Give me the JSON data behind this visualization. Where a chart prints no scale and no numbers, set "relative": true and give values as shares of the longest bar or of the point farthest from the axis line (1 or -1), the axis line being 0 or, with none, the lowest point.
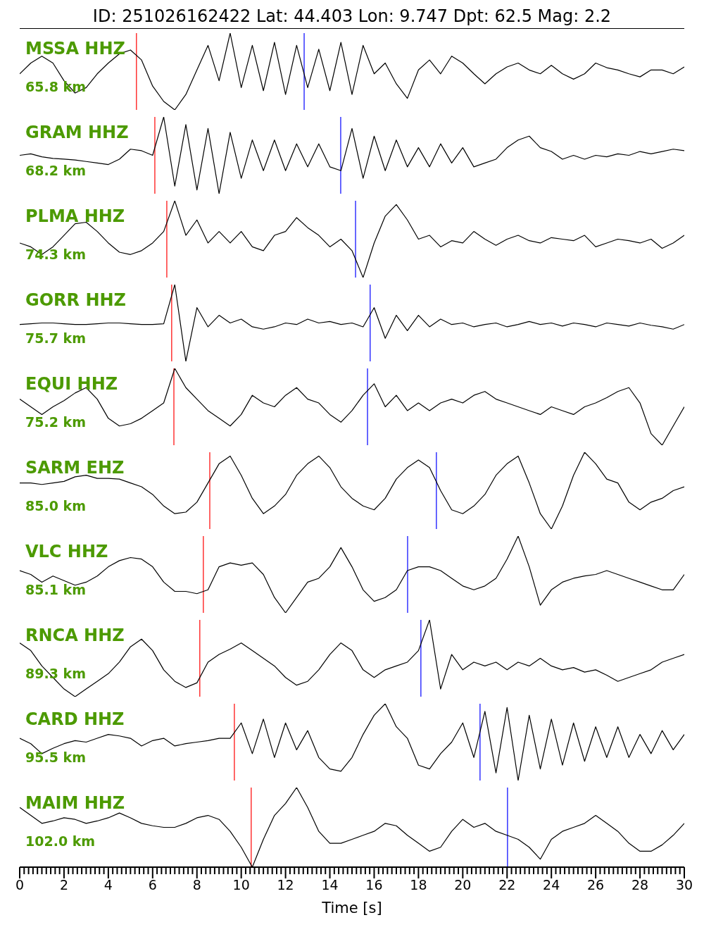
{
  "chart_data": [
    {
      "type": "line",
      "title": "ID: 251026162422 Lat:  44.403 Lon:   9.747 Dpt:    62.5 Mag:   2.2",
      "annotations": [
        "MSSA HHZ",
        "65.8 km"
      ],
      "relative": true,
      "xlim": [
        0,
        30
      ],
      "tick_labels": false,
      "color": "#000000",
      "x": [
        0,
        0.5,
        1,
        1.5,
        2,
        2.5,
        3,
        3.5,
        4,
        4.5,
        5,
        5.5,
        6,
        6.5,
        7,
        7.5,
        8,
        8.5,
        9,
        9.5,
        10,
        10.5,
        11,
        11.5,
        12,
        12.5,
        13,
        13.5,
        14,
        14.5,
        15,
        15.5,
        16,
        16.5,
        17,
        17.5,
        18,
        18.5,
        19,
        19.5,
        20,
        20.5,
        21,
        21.5,
        22,
        22.5,
        23,
        23.5,
        24,
        24.5,
        25,
        25.5,
        26,
        26.5,
        27,
        27.5,
        28,
        28.5,
        29,
        29.5,
        30
      ],
      "values": [
        0.47,
        0.61,
        0.7,
        0.61,
        0.38,
        0.22,
        0.29,
        0.47,
        0.61,
        0.73,
        0.78,
        0.65,
        0.31,
        0.11,
        0,
        0.2,
        0.52,
        0.84,
        0.38,
        1,
        0.29,
        0.84,
        0.25,
        0.88,
        0.2,
        0.84,
        0.29,
        0.79,
        0.25,
        0.88,
        0.2,
        0.84,
        0.47,
        0.61,
        0.34,
        0.15,
        0.52,
        0.65,
        0.47,
        0.7,
        0.61,
        0.47,
        0.34,
        0.47,
        0.56,
        0.61,
        0.52,
        0.47,
        0.58,
        0.47,
        0.4,
        0.47,
        0.61,
        0.55,
        0.52,
        0.47,
        0.43,
        0.52,
        0.52,
        0.47,
        0.56
      ],
      "ref_lines": [
        {
          "axis": "x",
          "value": 5.27,
          "color": "#ff0000"
        },
        {
          "axis": "x",
          "value": 12.84,
          "color": "#0000ff"
        }
      ]
    },
    {
      "type": "line",
      "annotations": [
        "GRAM HHZ",
        "68.2 km"
      ],
      "relative": true,
      "xlim": [
        0,
        30
      ],
      "tick_labels": false,
      "color": "#000000",
      "x": [
        0,
        0.5,
        1,
        1.5,
        2,
        2.5,
        3,
        3.5,
        4,
        4.5,
        5,
        5.5,
        6,
        6.5,
        7,
        7.5,
        8,
        8.5,
        9,
        9.5,
        10,
        10.5,
        11,
        11.5,
        12,
        12.5,
        13,
        13.5,
        14,
        14.5,
        15,
        15.5,
        16,
        16.5,
        17,
        17.5,
        18,
        18.5,
        19,
        19.5,
        20,
        20.5,
        21,
        21.5,
        22,
        22.5,
        23,
        23.5,
        24,
        24.5,
        25,
        25.5,
        26,
        26.5,
        27,
        27.5,
        28,
        28.5,
        29,
        29.5,
        30
      ],
      "values": [
        0.5,
        0.52,
        0.48,
        0.46,
        0.45,
        0.44,
        0.42,
        0.4,
        0.38,
        0.45,
        0.58,
        0.56,
        0.5,
        1,
        0.1,
        0.9,
        0.05,
        0.85,
        0,
        0.8,
        0.2,
        0.7,
        0.3,
        0.7,
        0.3,
        0.65,
        0.35,
        0.65,
        0.35,
        0.3,
        0.85,
        0.2,
        0.75,
        0.3,
        0.7,
        0.35,
        0.6,
        0.35,
        0.65,
        0.4,
        0.6,
        0.35,
        0.4,
        0.45,
        0.6,
        0.7,
        0.75,
        0.6,
        0.55,
        0.45,
        0.5,
        0.45,
        0.5,
        0.48,
        0.52,
        0.5,
        0.55,
        0.52,
        0.55,
        0.58,
        0.56
      ],
      "ref_lines": [
        {
          "axis": "x",
          "value": 6.1,
          "color": "#ff0000"
        },
        {
          "axis": "x",
          "value": 14.49,
          "color": "#0000ff"
        }
      ]
    },
    {
      "type": "line",
      "annotations": [
        "PLMA HHZ",
        "74.3 km"
      ],
      "relative": true,
      "xlim": [
        0,
        30
      ],
      "tick_labels": false,
      "color": "#000000",
      "x": [
        0,
        0.5,
        1,
        1.5,
        2,
        2.5,
        3,
        3.5,
        4,
        4.5,
        5,
        5.5,
        6,
        6.5,
        7,
        7.5,
        8,
        8.5,
        9,
        9.5,
        10,
        10.5,
        11,
        11.5,
        12,
        12.5,
        13,
        13.5,
        14,
        14.5,
        15,
        15.5,
        16,
        16.5,
        17,
        17.5,
        18,
        18.5,
        19,
        19.5,
        20,
        20.5,
        21,
        21.5,
        22,
        22.5,
        23,
        23.5,
        24,
        24.5,
        25,
        25.5,
        26,
        26.5,
        27,
        27.5,
        28,
        28.5,
        29,
        29.5,
        30
      ],
      "values": [
        0.45,
        0.4,
        0.3,
        0.4,
        0.55,
        0.7,
        0.72,
        0.6,
        0.45,
        0.33,
        0.3,
        0.35,
        0.45,
        0.6,
        1,
        0.55,
        0.75,
        0.45,
        0.6,
        0.45,
        0.6,
        0.4,
        0.35,
        0.55,
        0.6,
        0.78,
        0.65,
        0.55,
        0.4,
        0.5,
        0.35,
        0,
        0.45,
        0.8,
        0.95,
        0.75,
        0.5,
        0.55,
        0.4,
        0.48,
        0.45,
        0.6,
        0.5,
        0.42,
        0.5,
        0.55,
        0.48,
        0.45,
        0.52,
        0.5,
        0.48,
        0.55,
        0.4,
        0.45,
        0.5,
        0.48,
        0.45,
        0.5,
        0.38,
        0.45,
        0.55
      ],
      "ref_lines": [
        {
          "axis": "x",
          "value": 6.64,
          "color": "#ff0000"
        },
        {
          "axis": "x",
          "value": 15.16,
          "color": "#0000ff"
        }
      ]
    },
    {
      "type": "line",
      "annotations": [
        "GORR HHZ",
        "75.7 km"
      ],
      "relative": true,
      "xlim": [
        0,
        30
      ],
      "tick_labels": false,
      "color": "#000000",
      "x": [
        0,
        0.5,
        1,
        1.5,
        2,
        2.5,
        3,
        3.5,
        4,
        4.5,
        5,
        5.5,
        6,
        6.5,
        7,
        7.5,
        8,
        8.5,
        9,
        9.5,
        10,
        10.5,
        11,
        11.5,
        12,
        12.5,
        13,
        13.5,
        14,
        14.5,
        15,
        15.5,
        16,
        16.5,
        17,
        17.5,
        18,
        18.5,
        19,
        19.5,
        20,
        20.5,
        21,
        21.5,
        22,
        22.5,
        23,
        23.5,
        24,
        24.5,
        25,
        25.5,
        26,
        26.5,
        27,
        27.5,
        28,
        28.5,
        29,
        29.5,
        30
      ],
      "values": [
        0.48,
        0.49,
        0.5,
        0.5,
        0.49,
        0.48,
        0.48,
        0.49,
        0.5,
        0.5,
        0.49,
        0.48,
        0.48,
        0.49,
        1,
        0,
        0.7,
        0.45,
        0.6,
        0.5,
        0.55,
        0.45,
        0.42,
        0.45,
        0.5,
        0.48,
        0.55,
        0.5,
        0.52,
        0.48,
        0.5,
        0.45,
        0.7,
        0.3,
        0.6,
        0.4,
        0.6,
        0.45,
        0.55,
        0.48,
        0.5,
        0.45,
        0.48,
        0.5,
        0.45,
        0.48,
        0.52,
        0.48,
        0.5,
        0.46,
        0.5,
        0.48,
        0.45,
        0.5,
        0.48,
        0.46,
        0.5,
        0.47,
        0.45,
        0.42,
        0.48
      ],
      "ref_lines": [
        {
          "axis": "x",
          "value": 6.86,
          "color": "#ff0000"
        },
        {
          "axis": "x",
          "value": 15.82,
          "color": "#0000ff"
        }
      ]
    },
    {
      "type": "line",
      "annotations": [
        "EQUI HHZ",
        "75.2 km"
      ],
      "relative": true,
      "xlim": [
        0,
        30
      ],
      "tick_labels": false,
      "color": "#000000",
      "x": [
        0,
        0.5,
        1,
        1.5,
        2,
        2.5,
        3,
        3.5,
        4,
        4.5,
        5,
        5.5,
        6,
        6.5,
        7,
        7.5,
        8,
        8.5,
        9,
        9.5,
        10,
        10.5,
        11,
        11.5,
        12,
        12.5,
        13,
        13.5,
        14,
        14.5,
        15,
        15.5,
        16,
        16.5,
        17,
        17.5,
        18,
        18.5,
        19,
        19.5,
        20,
        20.5,
        21,
        21.5,
        22,
        22.5,
        23,
        23.5,
        24,
        24.5,
        25,
        25.5,
        26,
        26.5,
        27,
        27.5,
        28,
        28.5,
        29,
        29.5,
        30
      ],
      "values": [
        0.6,
        0.5,
        0.4,
        0.5,
        0.58,
        0.68,
        0.75,
        0.6,
        0.35,
        0.25,
        0.28,
        0.35,
        0.45,
        0.55,
        1,
        0.75,
        0.6,
        0.45,
        0.35,
        0.25,
        0.4,
        0.65,
        0.55,
        0.5,
        0.65,
        0.75,
        0.6,
        0.55,
        0.4,
        0.3,
        0.45,
        0.65,
        0.8,
        0.5,
        0.65,
        0.45,
        0.55,
        0.45,
        0.55,
        0.6,
        0.55,
        0.65,
        0.7,
        0.6,
        0.55,
        0.5,
        0.45,
        0.4,
        0.5,
        0.45,
        0.4,
        0.5,
        0.55,
        0.62,
        0.7,
        0.75,
        0.55,
        0.15,
        0,
        0.25,
        0.5
      ],
      "ref_lines": [
        {
          "axis": "x",
          "value": 6.96,
          "color": "#ff0000"
        },
        {
          "axis": "x",
          "value": 15.7,
          "color": "#0000ff"
        }
      ]
    },
    {
      "type": "line",
      "annotations": [
        "SARM EHZ",
        "85.0 km"
      ],
      "relative": true,
      "xlim": [
        0,
        30
      ],
      "tick_labels": false,
      "color": "#000000",
      "x": [
        0,
        0.5,
        1,
        1.5,
        2,
        2.5,
        3,
        3.5,
        4,
        4.5,
        5,
        5.5,
        6,
        6.5,
        7,
        7.5,
        8,
        8.5,
        9,
        9.5,
        10,
        10.5,
        11,
        11.5,
        12,
        12.5,
        13,
        13.5,
        14,
        14.5,
        15,
        15.5,
        16,
        16.5,
        17,
        17.5,
        18,
        18.5,
        19,
        19.5,
        20,
        20.5,
        21,
        21.5,
        22,
        22.5,
        23,
        23.5,
        24,
        24.5,
        25,
        25.5,
        26,
        26.5,
        27,
        27.5,
        28,
        28.5,
        29,
        29.5,
        30
      ],
      "values": [
        0.6,
        0.6,
        0.58,
        0.6,
        0.62,
        0.68,
        0.7,
        0.66,
        0.66,
        0.65,
        0.6,
        0.55,
        0.45,
        0.3,
        0.2,
        0.22,
        0.35,
        0.6,
        0.85,
        0.95,
        0.7,
        0.4,
        0.2,
        0.3,
        0.45,
        0.7,
        0.85,
        0.95,
        0.8,
        0.55,
        0.4,
        0.3,
        0.25,
        0.4,
        0.65,
        0.8,
        0.9,
        0.8,
        0.5,
        0.25,
        0.2,
        0.3,
        0.45,
        0.7,
        0.85,
        0.95,
        0.6,
        0.2,
        0,
        0.3,
        0.7,
        1,
        0.85,
        0.65,
        0.6,
        0.35,
        0.25,
        0.35,
        0.4,
        0.5,
        0.55
      ],
      "ref_lines": [
        {
          "axis": "x",
          "value": 8.58,
          "color": "#ff0000"
        },
        {
          "axis": "x",
          "value": 18.81,
          "color": "#0000ff"
        }
      ]
    },
    {
      "type": "line",
      "annotations": [
        "VLC HHZ",
        "85.1 km"
      ],
      "relative": true,
      "xlim": [
        0,
        30
      ],
      "tick_labels": false,
      "color": "#000000",
      "x": [
        0,
        0.5,
        1,
        1.5,
        2,
        2.5,
        3,
        3.5,
        4,
        4.5,
        5,
        5.5,
        6,
        6.5,
        7,
        7.5,
        8,
        8.5,
        9,
        9.5,
        10,
        10.5,
        11,
        11.5,
        12,
        12.5,
        13,
        13.5,
        14,
        14.5,
        15,
        15.5,
        16,
        16.5,
        17,
        17.5,
        18,
        18.5,
        19,
        19.5,
        20,
        20.5,
        21,
        21.5,
        22,
        22.5,
        23,
        23.5,
        24,
        24.5,
        25,
        25.5,
        26,
        26.5,
        27,
        27.5,
        28,
        28.5,
        29,
        29.5,
        30
      ],
      "values": [
        0.55,
        0.5,
        0.4,
        0.48,
        0.42,
        0.36,
        0.4,
        0.48,
        0.6,
        0.68,
        0.72,
        0.7,
        0.6,
        0.4,
        0.28,
        0.28,
        0.25,
        0.3,
        0.6,
        0.65,
        0.62,
        0.65,
        0.5,
        0.2,
        0,
        0.2,
        0.4,
        0.45,
        0.6,
        0.85,
        0.6,
        0.3,
        0.15,
        0.2,
        0.3,
        0.55,
        0.6,
        0.6,
        0.55,
        0.45,
        0.35,
        0.3,
        0.35,
        0.45,
        0.7,
        1,
        0.6,
        0.1,
        0.3,
        0.4,
        0.45,
        0.48,
        0.5,
        0.55,
        0.5,
        0.45,
        0.4,
        0.35,
        0.3,
        0.3,
        0.5
      ],
      "ref_lines": [
        {
          "axis": "x",
          "value": 8.29,
          "color": "#ff0000"
        },
        {
          "axis": "x",
          "value": 17.51,
          "color": "#0000ff"
        }
      ]
    },
    {
      "type": "line",
      "annotations": [
        "RNCA HHZ",
        "89.3 km"
      ],
      "relative": true,
      "xlim": [
        0,
        30
      ],
      "tick_labels": false,
      "color": "#000000",
      "x": [
        0,
        0.5,
        1,
        1.5,
        2,
        2.5,
        3,
        3.5,
        4,
        4.5,
        5,
        5.5,
        6,
        6.5,
        7,
        7.5,
        8,
        8.5,
        9,
        9.5,
        10,
        10.5,
        11,
        11.5,
        12,
        12.5,
        13,
        13.5,
        14,
        14.5,
        15,
        15.5,
        16,
        16.5,
        17,
        17.5,
        18,
        18.5,
        19,
        19.5,
        20,
        20.5,
        21,
        21.5,
        22,
        22.5,
        23,
        23.5,
        24,
        24.5,
        25,
        25.5,
        26,
        26.5,
        27,
        27.5,
        28,
        28.5,
        29,
        29.5,
        30
      ],
      "values": [
        0.7,
        0.6,
        0.4,
        0.25,
        0.1,
        0,
        0.1,
        0.2,
        0.3,
        0.45,
        0.65,
        0.75,
        0.6,
        0.35,
        0.2,
        0.12,
        0.18,
        0.45,
        0.55,
        0.62,
        0.7,
        0.6,
        0.5,
        0.4,
        0.25,
        0.15,
        0.2,
        0.35,
        0.55,
        0.7,
        0.6,
        0.35,
        0.25,
        0.35,
        0.4,
        0.45,
        0.6,
        1,
        0.1,
        0.55,
        0.35,
        0.45,
        0.4,
        0.45,
        0.35,
        0.45,
        0.4,
        0.5,
        0.4,
        0.35,
        0.38,
        0.32,
        0.35,
        0.28,
        0.2,
        0.25,
        0.3,
        0.35,
        0.45,
        0.5,
        0.55
      ],
      "ref_lines": [
        {
          "axis": "x",
          "value": 8.13,
          "color": "#ff0000"
        },
        {
          "axis": "x",
          "value": 18.11,
          "color": "#0000ff"
        }
      ]
    },
    {
      "type": "line",
      "annotations": [
        "CARD HHZ",
        "95.5 km"
      ],
      "relative": true,
      "xlim": [
        0,
        30
      ],
      "tick_labels": false,
      "color": "#000000",
      "x": [
        0,
        0.5,
        1,
        1.5,
        2,
        2.5,
        3,
        3.5,
        4,
        4.5,
        5,
        5.5,
        6,
        6.5,
        7,
        7.5,
        8,
        8.5,
        9,
        9.5,
        10,
        10.5,
        11,
        11.5,
        12,
        12.5,
        13,
        13.5,
        14,
        14.5,
        15,
        15.5,
        16,
        16.5,
        17,
        17.5,
        18,
        18.5,
        19,
        19.5,
        20,
        20.5,
        21,
        21.5,
        22,
        22.5,
        23,
        23.5,
        24,
        24.5,
        25,
        25.5,
        26,
        26.5,
        27,
        27.5,
        28,
        28.5,
        29,
        29.5,
        30
      ],
      "values": [
        0.55,
        0.48,
        0.35,
        0.42,
        0.48,
        0.52,
        0.5,
        0.55,
        0.6,
        0.58,
        0.55,
        0.45,
        0.52,
        0.55,
        0.45,
        0.48,
        0.5,
        0.52,
        0.55,
        0.55,
        0.75,
        0.35,
        0.8,
        0.3,
        0.75,
        0.4,
        0.65,
        0.3,
        0.15,
        0.12,
        0.3,
        0.6,
        0.85,
        1,
        0.7,
        0.55,
        0.2,
        0.15,
        0.35,
        0.5,
        0.75,
        0.3,
        0.9,
        0.1,
        0.95,
        0,
        0.85,
        0.15,
        0.8,
        0.2,
        0.75,
        0.25,
        0.7,
        0.3,
        0.7,
        0.3,
        0.6,
        0.35,
        0.65,
        0.4,
        0.6
      ],
      "ref_lines": [
        {
          "axis": "x",
          "value": 9.69,
          "color": "#ff0000"
        },
        {
          "axis": "x",
          "value": 20.78,
          "color": "#0000ff"
        }
      ]
    },
    {
      "type": "line",
      "annotations": [
        "MAIM HHZ",
        "102.0 km"
      ],
      "relative": true,
      "xlim": [
        0,
        30
      ],
      "tick_labels": "x",
      "xlabel": "Time [s]",
      "color": "#000000",
      "x": [
        0,
        0.5,
        1,
        1.5,
        2,
        2.5,
        3,
        3.5,
        4,
        4.5,
        5,
        5.5,
        6,
        6.5,
        7,
        7.5,
        8,
        8.5,
        9,
        9.5,
        10,
        10.5,
        11,
        11.5,
        12,
        12.5,
        13,
        13.5,
        14,
        14.5,
        15,
        15.5,
        16,
        16.5,
        17,
        17.5,
        18,
        18.5,
        19,
        19.5,
        20,
        20.5,
        21,
        21.5,
        22,
        22.5,
        23,
        23.5,
        24,
        24.5,
        25,
        25.5,
        26,
        26.5,
        27,
        27.5,
        28,
        28.5,
        29,
        29.5,
        30
      ],
      "values": [
        0.75,
        0.65,
        0.55,
        0.58,
        0.62,
        0.6,
        0.55,
        0.58,
        0.62,
        0.68,
        0.62,
        0.55,
        0.52,
        0.5,
        0.5,
        0.55,
        0.62,
        0.65,
        0.6,
        0.45,
        0.25,
        0,
        0.35,
        0.65,
        0.8,
        1,
        0.75,
        0.45,
        0.3,
        0.3,
        0.35,
        0.4,
        0.45,
        0.55,
        0.52,
        0.4,
        0.3,
        0.2,
        0.25,
        0.45,
        0.6,
        0.5,
        0.55,
        0.45,
        0.4,
        0.35,
        0.25,
        0.1,
        0.35,
        0.45,
        0.5,
        0.55,
        0.65,
        0.55,
        0.45,
        0.3,
        0.2,
        0.2,
        0.28,
        0.4,
        0.55
      ],
      "ref_lines": [
        {
          "axis": "x",
          "value": 10.45,
          "color": "#ff0000"
        },
        {
          "axis": "x",
          "value": 22.02,
          "color": "#0000ff"
        }
      ],
      "xticks": [
        0,
        {
          "value": 0.2,
          "label": null
        },
        {
          "value": 0.4,
          "label": null
        },
        {
          "value": 0.6,
          "label": null
        },
        {
          "value": 0.8,
          "label": null
        },
        {
          "value": 1,
          "label": null
        },
        {
          "value": 1.2,
          "label": null
        },
        {
          "value": 1.4,
          "label": null
        },
        {
          "value": 1.6,
          "label": null
        },
        {
          "value": 1.8,
          "label": null
        },
        2,
        {
          "value": 2.2,
          "label": null
        },
        {
          "value": 2.4,
          "label": null
        },
        {
          "value": 2.6,
          "label": null
        },
        {
          "value": 2.8,
          "label": null
        },
        {
          "value": 3,
          "label": null
        },
        {
          "value": 3.2,
          "label": null
        },
        {
          "value": 3.4,
          "label": null
        },
        {
          "value": 3.6,
          "label": null
        },
        {
          "value": 3.8,
          "label": null
        },
        4,
        {
          "value": 4.2,
          "label": null
        },
        {
          "value": 4.4,
          "label": null
        },
        {
          "value": 4.6,
          "label": null
        },
        {
          "value": 4.8,
          "label": null
        },
        {
          "value": 5,
          "label": null
        },
        {
          "value": 5.2,
          "label": null
        },
        {
          "value": 5.4,
          "label": null
        },
        {
          "value": 5.6,
          "label": null
        },
        {
          "value": 5.8,
          "label": null
        },
        6,
        {
          "value": 6.2,
          "label": null
        },
        {
          "value": 6.4,
          "label": null
        },
        {
          "value": 6.6,
          "label": null
        },
        {
          "value": 6.8,
          "label": null
        },
        {
          "value": 7,
          "label": null
        },
        {
          "value": 7.2,
          "label": null
        },
        {
          "value": 7.4,
          "label": null
        },
        {
          "value": 7.6,
          "label": null
        },
        {
          "value": 7.8,
          "label": null
        },
        8,
        {
          "value": 8.2,
          "label": null
        },
        {
          "value": 8.4,
          "label": null
        },
        {
          "value": 8.6,
          "label": null
        },
        {
          "value": 8.8,
          "label": null
        },
        {
          "value": 9,
          "label": null
        },
        {
          "value": 9.2,
          "label": null
        },
        {
          "value": 9.4,
          "label": null
        },
        {
          "value": 9.6,
          "label": null
        },
        {
          "value": 9.8,
          "label": null
        },
        10,
        {
          "value": 10.2,
          "label": null
        },
        {
          "value": 10.4,
          "label": null
        },
        {
          "value": 10.6,
          "label": null
        },
        {
          "value": 10.8,
          "label": null
        },
        {
          "value": 11,
          "label": null
        },
        {
          "value": 11.2,
          "label": null
        },
        {
          "value": 11.4,
          "label": null
        },
        {
          "value": 11.6,
          "label": null
        },
        {
          "value": 11.8,
          "label": null
        },
        12,
        {
          "value": 12.2,
          "label": null
        },
        {
          "value": 12.4,
          "label": null
        },
        {
          "value": 12.6,
          "label": null
        },
        {
          "value": 12.8,
          "label": null
        },
        {
          "value": 13,
          "label": null
        },
        {
          "value": 13.2,
          "label": null
        },
        {
          "value": 13.4,
          "label": null
        },
        {
          "value": 13.6,
          "label": null
        },
        {
          "value": 13.8,
          "label": null
        },
        14,
        {
          "value": 14.2,
          "label": null
        },
        {
          "value": 14.4,
          "label": null
        },
        {
          "value": 14.6,
          "label": null
        },
        {
          "value": 14.8,
          "label": null
        },
        {
          "value": 15,
          "label": null
        },
        {
          "value": 15.2,
          "label": null
        },
        {
          "value": 15.4,
          "label": null
        },
        {
          "value": 15.6,
          "label": null
        },
        {
          "value": 15.8,
          "label": null
        },
        16,
        {
          "value": 16.2,
          "label": null
        },
        {
          "value": 16.4,
          "label": null
        },
        {
          "value": 16.6,
          "label": null
        },
        {
          "value": 16.8,
          "label": null
        },
        {
          "value": 17,
          "label": null
        },
        {
          "value": 17.2,
          "label": null
        },
        {
          "value": 17.4,
          "label": null
        },
        {
          "value": 17.6,
          "label": null
        },
        {
          "value": 17.8,
          "label": null
        },
        18,
        {
          "value": 18.2,
          "label": null
        },
        {
          "value": 18.4,
          "label": null
        },
        {
          "value": 18.6,
          "label": null
        },
        {
          "value": 18.8,
          "label": null
        },
        {
          "value": 19,
          "label": null
        },
        {
          "value": 19.2,
          "label": null
        },
        {
          "value": 19.4,
          "label": null
        },
        {
          "value": 19.6,
          "label": null
        },
        {
          "value": 19.8,
          "label": null
        },
        20,
        {
          "value": 20.2,
          "label": null
        },
        {
          "value": 20.4,
          "label": null
        },
        {
          "value": 20.6,
          "label": null
        },
        {
          "value": 20.8,
          "label": null
        },
        {
          "value": 21,
          "label": null
        },
        {
          "value": 21.2,
          "label": null
        },
        {
          "value": 21.4,
          "label": null
        },
        {
          "value": 21.6,
          "label": null
        },
        {
          "value": 21.8,
          "label": null
        },
        22,
        {
          "value": 22.2,
          "label": null
        },
        {
          "value": 22.4,
          "label": null
        },
        {
          "value": 22.6,
          "label": null
        },
        {
          "value": 22.8,
          "label": null
        },
        {
          "value": 23,
          "label": null
        },
        {
          "value": 23.2,
          "label": null
        },
        {
          "value": 23.4,
          "label": null
        },
        {
          "value": 23.6,
          "label": null
        },
        {
          "value": 23.8,
          "label": null
        },
        24,
        {
          "value": 24.2,
          "label": null
        },
        {
          "value": 24.4,
          "label": null
        },
        {
          "value": 24.6,
          "label": null
        },
        {
          "value": 24.8,
          "label": null
        },
        {
          "value": 25,
          "label": null
        },
        {
          "value": 25.2,
          "label": null
        },
        {
          "value": 25.4,
          "label": null
        },
        {
          "value": 25.6,
          "label": null
        },
        {
          "value": 25.8,
          "label": null
        },
        26,
        {
          "value": 26.2,
          "label": null
        },
        {
          "value": 26.4,
          "label": null
        },
        {
          "value": 26.6,
          "label": null
        },
        {
          "value": 26.8,
          "label": null
        },
        {
          "value": 27,
          "label": null
        },
        {
          "value": 27.2,
          "label": null
        },
        {
          "value": 27.4,
          "label": null
        },
        {
          "value": 27.6,
          "label": null
        },
        {
          "value": 27.8,
          "label": null
        },
        28,
        {
          "value": 28.2,
          "label": null
        },
        {
          "value": 28.4,
          "label": null
        },
        {
          "value": 28.6,
          "label": null
        },
        {
          "value": 28.8,
          "label": null
        },
        {
          "value": 29,
          "label": null
        },
        {
          "value": 29.2,
          "label": null
        },
        {
          "value": 29.4,
          "label": null
        },
        {
          "value": 29.6,
          "label": null
        },
        {
          "value": 29.8,
          "label": null
        },
        30
      ]
    }
  ]
}
